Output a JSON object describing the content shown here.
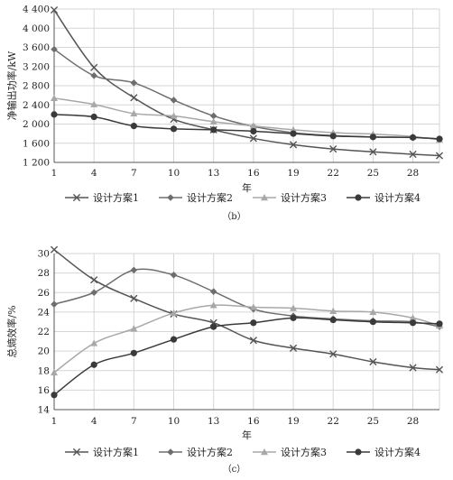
{
  "chart_data": [
    {
      "type": "line",
      "title": "",
      "xlabel": "年",
      "ylabel": "净输出功率/kW",
      "ylim": [
        1200,
        4400
      ],
      "yticks": [
        1200,
        1600,
        2000,
        2400,
        2800,
        3200,
        3600,
        4000,
        4400
      ],
      "ytick_labels": [
        "1 200",
        "1 600",
        "2 000",
        "2 400",
        "2 800",
        "3 200",
        "3 600",
        "4 000",
        "4 400"
      ],
      "xticks": [
        1,
        4,
        7,
        10,
        13,
        16,
        19,
        22,
        25,
        28
      ],
      "x": [
        1,
        4,
        7,
        10,
        13,
        16,
        19,
        22,
        25,
        28,
        30
      ],
      "grid": true,
      "legend_position": "bottom",
      "caption": "（b）",
      "series": [
        {
          "name": "设计方案1",
          "color": "#555555",
          "marker": "x",
          "values": [
            4380,
            3180,
            2550,
            2100,
            1880,
            1700,
            1570,
            1480,
            1420,
            1370,
            1340
          ]
        },
        {
          "name": "设计方案2",
          "color": "#6e6e6e",
          "marker": "diamond",
          "values": [
            3560,
            3010,
            2860,
            2500,
            2170,
            1950,
            1820,
            1760,
            1730,
            1720,
            1690
          ]
        },
        {
          "name": "设计方案3",
          "color": "#a8a8a8",
          "marker": "triangle",
          "values": [
            2540,
            2410,
            2220,
            2170,
            2050,
            1960,
            1880,
            1820,
            1790,
            1740,
            1670
          ]
        },
        {
          "name": "设计方案4",
          "color": "#3a3a3a",
          "marker": "circle",
          "values": [
            2200,
            2150,
            1960,
            1900,
            1880,
            1850,
            1800,
            1750,
            1730,
            1720,
            1690
          ]
        }
      ]
    },
    {
      "type": "line",
      "title": "",
      "xlabel": "年",
      "ylabel": "总熵效率/%",
      "ylim": [
        14,
        30
      ],
      "yticks": [
        14,
        16,
        18,
        20,
        22,
        24,
        26,
        28,
        30
      ],
      "ytick_labels": [
        "14",
        "16",
        "18",
        "20",
        "22",
        "24",
        "26",
        "28",
        "30"
      ],
      "xticks": [
        1,
        4,
        7,
        10,
        13,
        16,
        19,
        22,
        25,
        28
      ],
      "x": [
        1,
        4,
        7,
        10,
        13,
        16,
        19,
        22,
        25,
        28,
        30
      ],
      "grid": true,
      "legend_position": "bottom",
      "caption": "（c）",
      "series": [
        {
          "name": "设计方案1",
          "color": "#555555",
          "marker": "x",
          "values": [
            30.4,
            27.3,
            25.4,
            23.8,
            22.9,
            21.1,
            20.3,
            19.7,
            18.9,
            18.3,
            18.1
          ]
        },
        {
          "name": "设计方案2",
          "color": "#6e6e6e",
          "marker": "diamond",
          "values": [
            24.8,
            26.0,
            28.3,
            27.8,
            26.1,
            24.3,
            23.6,
            23.3,
            23.1,
            23.0,
            22.5
          ]
        },
        {
          "name": "设计方案3",
          "color": "#a8a8a8",
          "marker": "triangle",
          "values": [
            17.8,
            20.8,
            22.3,
            23.9,
            24.7,
            24.5,
            24.4,
            24.1,
            24.0,
            23.4,
            22.6
          ]
        },
        {
          "name": "设计方案4",
          "color": "#3a3a3a",
          "marker": "circle",
          "values": [
            15.5,
            18.6,
            19.8,
            21.2,
            22.5,
            22.9,
            23.4,
            23.2,
            23.0,
            22.9,
            22.8
          ]
        }
      ]
    }
  ]
}
